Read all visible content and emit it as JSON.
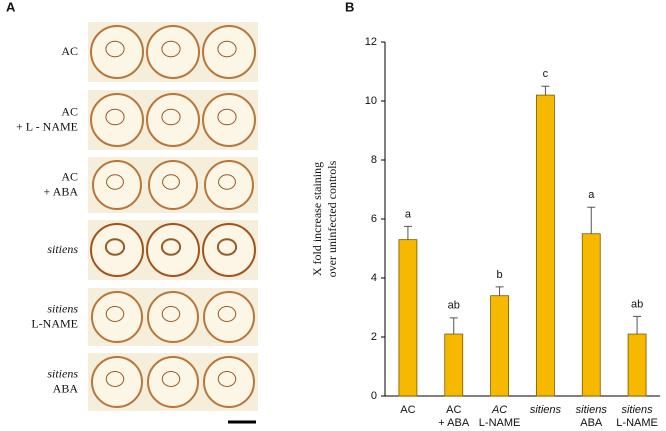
{
  "panel_a": {
    "label": "A",
    "rows": [
      {
        "label": [
          "AC"
        ]
      },
      {
        "label": [
          "AC",
          "+ L - NAME"
        ]
      },
      {
        "label": [
          "AC",
          "+ ABA"
        ]
      },
      {
        "label": [
          "sitiens"
        ]
      },
      {
        "label": [
          "sitiens",
          "L-NAME"
        ]
      },
      {
        "label": [
          "sitiens",
          "ABA"
        ]
      }
    ]
  },
  "chart_data": {
    "type": "bar",
    "panel_label": "B",
    "y_label": [
      "X fold increase  staining",
      "over uninfected  controls"
    ],
    "categories": [
      [
        "AC"
      ],
      [
        "AC",
        "+ ABA"
      ],
      [
        "AC",
        "L-NAME"
      ],
      [
        "sitiens"
      ],
      [
        "sitiens",
        "ABA"
      ],
      [
        "sitiens",
        "L-NAME"
      ]
    ],
    "values": [
      5.3,
      2.1,
      3.4,
      10.2,
      5.5,
      2.1
    ],
    "errors": [
      0.45,
      0.55,
      0.3,
      0.3,
      0.9,
      0.6
    ],
    "letters": [
      "a",
      "ab",
      "b",
      "c",
      "a",
      "ab"
    ],
    "color": "#f7b800",
    "ylim": [
      0,
      12
    ],
    "yticks": [
      0,
      2,
      4,
      6,
      8,
      10,
      12
    ],
    "grid": false
  }
}
